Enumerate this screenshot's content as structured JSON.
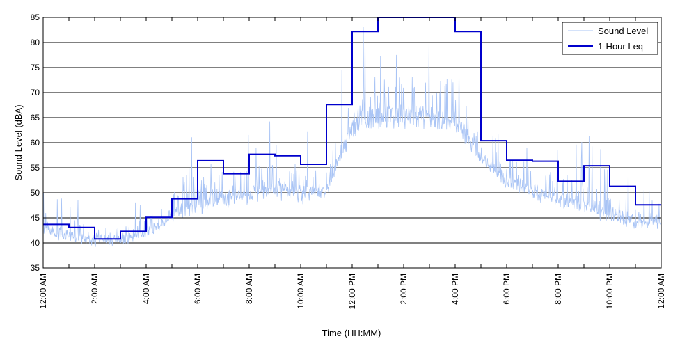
{
  "chart_data": {
    "type": "line",
    "title": "",
    "xlabel": "Time (HH:MM)",
    "ylabel": "Sound Level (dBA)",
    "ylim": [
      35,
      85
    ],
    "yticks": [
      35,
      40,
      45,
      50,
      55,
      60,
      65,
      70,
      75,
      80,
      85
    ],
    "xlim_hours": [
      0,
      24
    ],
    "xticks": [
      {
        "hour": 0,
        "label": "12:00 AM"
      },
      {
        "hour": 2,
        "label": "2:00 AM"
      },
      {
        "hour": 4,
        "label": "4:00 AM"
      },
      {
        "hour": 6,
        "label": "6:00 AM"
      },
      {
        "hour": 8,
        "label": "8:00 AM"
      },
      {
        "hour": 10,
        "label": "10:00 AM"
      },
      {
        "hour": 12,
        "label": "12:00 PM"
      },
      {
        "hour": 14,
        "label": "2:00 PM"
      },
      {
        "hour": 16,
        "label": "4:00 PM"
      },
      {
        "hour": 18,
        "label": "6:00 PM"
      },
      {
        "hour": 20,
        "label": "8:00 PM"
      },
      {
        "hour": 22,
        "label": "10:00 PM"
      },
      {
        "hour": 24,
        "label": "12:00 AM"
      }
    ],
    "grid": "horizontal",
    "legend_position": "top-right",
    "series": [
      {
        "name": "Sound Level",
        "color": "#a9c4f5",
        "baseline": [
          43,
          41,
          40.5,
          40.5,
          42,
          45,
          47,
          48,
          49,
          50,
          49,
          50,
          62,
          64,
          64,
          64,
          63,
          57,
          52,
          50,
          48,
          47,
          45,
          44
        ],
        "peak": [
          51,
          50,
          48,
          47,
          49,
          55,
          72,
          62,
          63,
          66,
          64,
          61,
          85,
          85,
          85,
          85,
          85,
          65,
          63,
          63,
          60,
          63,
          58,
          54
        ]
      },
      {
        "name": "1-Hour Leq",
        "color": "#0000cc",
        "x": [
          0,
          1,
          1,
          2,
          2,
          3,
          3,
          4,
          4,
          5,
          5,
          6,
          6,
          7,
          7,
          8,
          8,
          9,
          9,
          10,
          10,
          11,
          11,
          12,
          12,
          13,
          13,
          14,
          14,
          15,
          15,
          16,
          16,
          17,
          17,
          18,
          18,
          19,
          19,
          20,
          20,
          21,
          21,
          22,
          22,
          23,
          23,
          24
        ],
        "y": [
          43.7,
          43.7,
          43.1,
          43.1,
          40.8,
          40.8,
          42.3,
          42.3,
          45.1,
          45.1,
          48.8,
          48.8,
          56.4,
          56.4,
          53.8,
          53.8,
          57.7,
          57.7,
          57.4,
          57.4,
          55.7,
          55.7,
          67.6,
          67.6,
          82.2,
          82.2,
          85,
          85,
          85,
          85,
          85,
          85,
          82.2,
          82.2,
          60.4,
          60.4,
          56.5,
          56.5,
          56.3,
          56.3,
          52.3,
          52.3,
          55.4,
          55.4,
          51.3,
          51.3,
          47.6,
          47.6
        ]
      }
    ]
  }
}
